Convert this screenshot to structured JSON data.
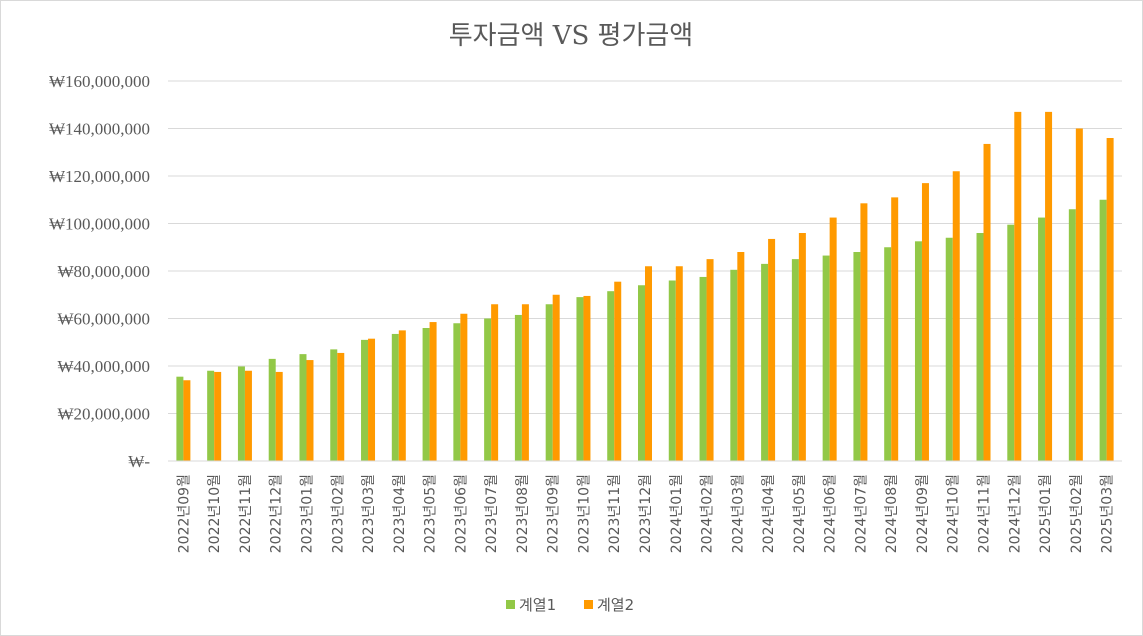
{
  "chart_data": {
    "type": "bar",
    "title": "투자금액 VS 평가금액",
    "xlabel": "",
    "ylabel": "",
    "ylim": [
      0,
      160000000
    ],
    "y_ticks": [
      {
        "value": 0,
        "label": "₩-"
      },
      {
        "value": 20000000,
        "label": "₩20,000,000"
      },
      {
        "value": 40000000,
        "label": "₩40,000,000"
      },
      {
        "value": 60000000,
        "label": "₩60,000,000"
      },
      {
        "value": 80000000,
        "label": "₩80,000,000"
      },
      {
        "value": 100000000,
        "label": "₩100,000,000"
      },
      {
        "value": 120000000,
        "label": "₩120,000,000"
      },
      {
        "value": 140000000,
        "label": "₩140,000,000"
      },
      {
        "value": 160000000,
        "label": "₩160,000,000"
      }
    ],
    "grid": "horizontal",
    "legend_position": "bottom",
    "categories": [
      "2022년09월",
      "2022년10월",
      "2022년11월",
      "2022년12월",
      "2023년01월",
      "2023년02월",
      "2023년03월",
      "2023년04월",
      "2023년05월",
      "2023년06월",
      "2023년07월",
      "2023년08월",
      "2023년09월",
      "2023년10월",
      "2023년11월",
      "2023년12월",
      "2024년01월",
      "2024년02월",
      "2024년03월",
      "2024년04월",
      "2024년05월",
      "2024년06월",
      "2024년07월",
      "2024년08월",
      "2024년09월",
      "2024년10월",
      "2024년11월",
      "2024년12월",
      "2025년01월",
      "2025년02월",
      "2025년03월"
    ],
    "series": [
      {
        "name": "계열1",
        "color": "#92c847",
        "values": [
          35500000,
          38000000,
          39800000,
          43000000,
          45000000,
          47000000,
          51000000,
          53500000,
          56000000,
          58000000,
          60000000,
          61500000,
          66000000,
          69000000,
          71500000,
          74000000,
          76000000,
          77500000,
          80500000,
          83000000,
          85000000,
          86500000,
          88000000,
          90000000,
          92500000,
          94000000,
          96000000,
          99500000,
          102500000,
          106000000,
          110000000
        ]
      },
      {
        "name": "계열2",
        "color": "#ff9a00",
        "values": [
          34000000,
          37500000,
          38000000,
          37500000,
          42500000,
          45500000,
          51500000,
          55000000,
          58500000,
          62000000,
          66000000,
          66000000,
          70000000,
          69500000,
          75500000,
          82000000,
          82000000,
          85000000,
          88000000,
          93500000,
          96000000,
          102500000,
          108500000,
          111000000,
          117000000,
          122000000,
          133500000,
          147000000,
          147000000,
          140000000,
          136000000
        ]
      }
    ]
  }
}
